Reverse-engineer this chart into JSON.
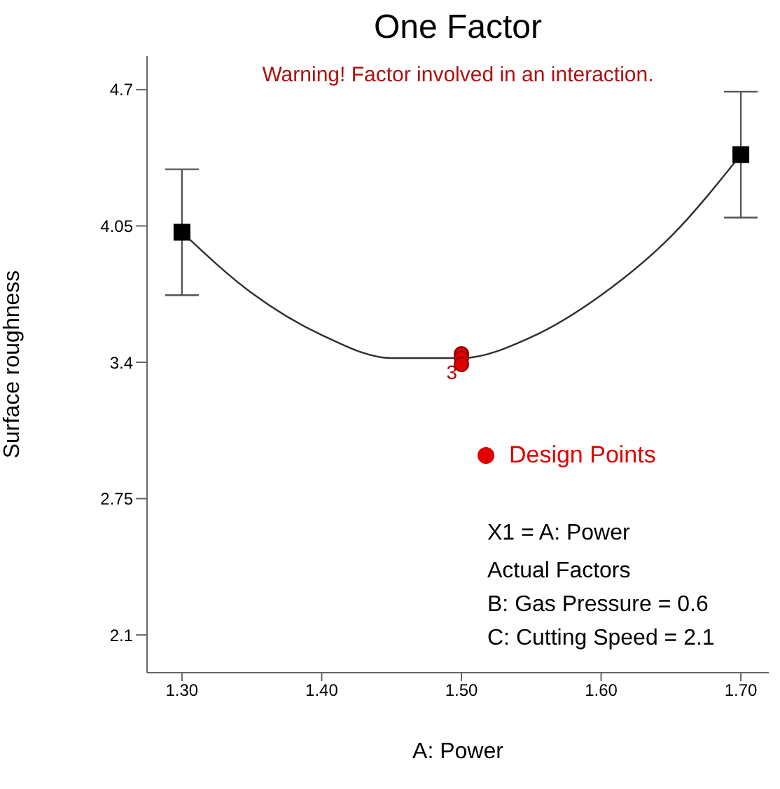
{
  "chart_data": {
    "type": "scatter",
    "title": "One Factor",
    "xlabel": "A: Power",
    "ylabel": "Surface roughness",
    "xlim": [
      1.275,
      1.72
    ],
    "ylim": [
      1.92,
      4.86
    ],
    "xticks": [
      {
        "value": 1.3,
        "label": "1.30"
      },
      {
        "value": 1.4,
        "label": "1.40"
      },
      {
        "value": 1.5,
        "label": "1.50"
      },
      {
        "value": 1.6,
        "label": "1.60"
      },
      {
        "value": 1.7,
        "label": "1.70"
      }
    ],
    "yticks": [
      2.1,
      2.75,
      3.4,
      4.05,
      4.7
    ],
    "grid": false,
    "legend": "right",
    "series": [
      {
        "type": "line",
        "color": "#303030",
        "marker": "none",
        "line_style": "solid",
        "x": [
          1.3,
          1.35,
          1.4,
          1.45,
          1.5,
          1.55,
          1.6,
          1.65,
          1.7
        ],
        "values": [
          4.02,
          3.73,
          3.53,
          3.42,
          3.42,
          3.52,
          3.72,
          4.0,
          4.39
        ]
      },
      {
        "color": "#000000",
        "marker": "square",
        "x": [
          1.3,
          1.7
        ],
        "values": [
          4.02,
          4.39
        ],
        "errors": [
          0.3,
          0.3
        ]
      },
      {
        "name": "Design Points",
        "color": "#e00000",
        "marker": "circle",
        "x": [
          1.5,
          1.5,
          1.5
        ],
        "values": [
          3.44,
          3.42,
          3.39
        ]
      }
    ],
    "annotations": [
      "Warning! Factor involved in an interaction.",
      {
        "text": "3",
        "x": 1.5,
        "y": 3.42
      },
      "X1 = A: Power",
      "Actual Factors",
      "B: Gas Pressure = 0.6",
      "C: Cutting Speed = 2.1"
    ]
  }
}
